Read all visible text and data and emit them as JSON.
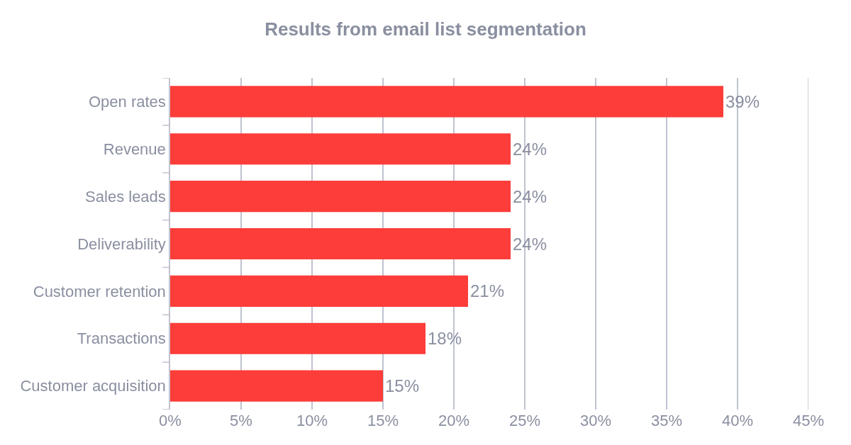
{
  "chart_data": {
    "type": "bar",
    "orientation": "horizontal",
    "title": "Results from email list segmentation",
    "categories": [
      "Open rates",
      "Revenue",
      "Sales leads",
      "Deliverability",
      "Customer retention",
      "Transactions",
      "Customer acquisition"
    ],
    "values": [
      39,
      24,
      24,
      24,
      21,
      18,
      15
    ],
    "value_labels": [
      "39%",
      "24%",
      "24%",
      "24%",
      "21%",
      "18%",
      "15%"
    ],
    "color": "#fc3d39",
    "xlim": [
      0,
      45
    ],
    "xticks": [
      {
        "value": 0,
        "label": "0%"
      },
      {
        "value": 5,
        "label": "5%"
      },
      {
        "value": 10,
        "label": "10%"
      },
      {
        "value": 15,
        "label": "15%"
      },
      {
        "value": 20,
        "label": "20%"
      },
      {
        "value": 25,
        "label": "25%"
      },
      {
        "value": 30,
        "label": "30%"
      },
      {
        "value": 35,
        "label": "35%"
      },
      {
        "value": 40,
        "label": "40%"
      },
      {
        "value": 45,
        "label": "45%"
      }
    ],
    "grid": "x"
  }
}
